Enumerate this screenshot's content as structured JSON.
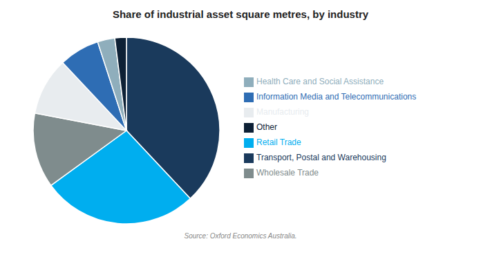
{
  "chart_data": {
    "type": "pie",
    "title": "Share of industrial asset square metres, by industry",
    "annotations": [
      "Source: Oxford Economics Australia."
    ],
    "categories": [
      "Transport, Postal and Warehousing",
      "Retail Trade",
      "Wholesale Trade",
      "Manufacturing",
      "Information Media and Telecommunications",
      "Health Care and Social Assistance",
      "Other"
    ],
    "values": [
      38,
      27,
      13,
      10,
      7,
      3,
      2
    ],
    "colors": [
      "#1a3a5c",
      "#00aeef",
      "#7f8c8d",
      "#e8ecef",
      "#2e6db4",
      "#8faebc",
      "#0d2035"
    ],
    "legend": "right"
  }
}
